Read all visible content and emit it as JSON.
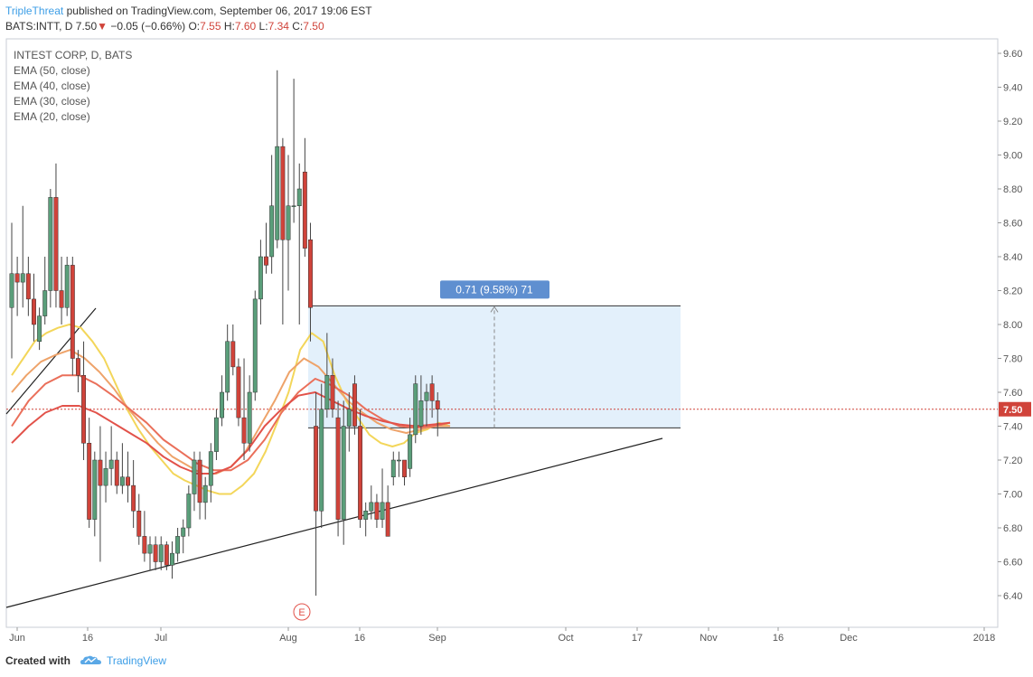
{
  "header": {
    "author": "TripleThreat",
    "published_text": "published on TradingView.com, September 06, 2017 19:06 EST",
    "symbol": "BATS:INTT, D",
    "last": "7.50",
    "arrow": "▼",
    "change": "−0.05 (−0.66%)",
    "ohlc_labels": [
      "O:",
      "H:",
      "L:",
      "C:"
    ],
    "ohlc_values": [
      "7.55",
      "7.60",
      "7.34",
      "7.50"
    ]
  },
  "legend": {
    "title": "INTEST CORP, D, BATS",
    "indicators": [
      "EMA (50, close)",
      "EMA (40, close)",
      "EMA (30, close)",
      "EMA (20, close)"
    ]
  },
  "footer": {
    "created_with": "Created with",
    "brand": "TradingView"
  },
  "measure_label": "0.71 (9.58%) 71",
  "earnings_marker": "E",
  "colors": {
    "up": "#5a9e7a",
    "down": "#d0433a",
    "ema20": "#f3d65a",
    "ema30": "#eea36a",
    "ema40": "#ea6f5a",
    "ema50": "#e2524a",
    "measure_fill": "#e3f0fb",
    "measure_label_bg": "#5f8fd0",
    "last_price_bg": "#d0433a"
  },
  "chart_data": {
    "type": "candlestick",
    "symbol": "BATS:INTT",
    "interval": "D",
    "price_axis": {
      "ticks": [
        "9.60",
        "9.40",
        "9.20",
        "9.00",
        "8.80",
        "8.60",
        "8.40",
        "8.20",
        "8.00",
        "7.80",
        "7.60",
        "7.40",
        "7.20",
        "7.00",
        "6.80",
        "6.60",
        "6.40"
      ],
      "range": [
        6.3,
        9.68
      ]
    },
    "time_axis": {
      "ticks": [
        "Jun",
        "16",
        "Jul",
        "Aug",
        "16",
        "Sep",
        "Oct",
        "17",
        "Nov",
        "16",
        "Dec",
        "2018"
      ]
    },
    "last_price": 7.5,
    "candles": [
      {
        "o": 8.1,
        "h": 8.6,
        "l": 7.8,
        "c": 8.3
      },
      {
        "o": 8.3,
        "h": 8.4,
        "l": 8.05,
        "c": 8.25
      },
      {
        "o": 8.25,
        "h": 8.7,
        "l": 8.1,
        "c": 8.3
      },
      {
        "o": 8.3,
        "h": 8.4,
        "l": 8.05,
        "c": 8.15
      },
      {
        "o": 8.15,
        "h": 8.3,
        "l": 7.9,
        "c": 8.0
      },
      {
        "o": 7.9,
        "h": 8.1,
        "l": 7.85,
        "c": 8.05
      },
      {
        "o": 8.05,
        "h": 8.4,
        "l": 8.0,
        "c": 8.2
      },
      {
        "o": 8.2,
        "h": 8.8,
        "l": 8.1,
        "c": 8.75
      },
      {
        "o": 8.75,
        "h": 8.95,
        "l": 8.1,
        "c": 8.2
      },
      {
        "o": 8.2,
        "h": 8.4,
        "l": 8.0,
        "c": 8.1
      },
      {
        "o": 8.1,
        "h": 8.4,
        "l": 8.05,
        "c": 8.35
      },
      {
        "o": 8.35,
        "h": 8.4,
        "l": 7.7,
        "c": 7.8
      },
      {
        "o": 7.8,
        "h": 7.85,
        "l": 7.6,
        "c": 7.7
      },
      {
        "o": 7.7,
        "h": 7.9,
        "l": 7.2,
        "c": 7.3
      },
      {
        "o": 7.3,
        "h": 7.45,
        "l": 6.8,
        "c": 6.85
      },
      {
        "o": 6.85,
        "h": 7.25,
        "l": 6.75,
        "c": 7.2
      },
      {
        "o": 7.2,
        "h": 7.4,
        "l": 6.6,
        "c": 7.05
      },
      {
        "o": 7.05,
        "h": 7.25,
        "l": 6.95,
        "c": 7.15
      },
      {
        "o": 7.15,
        "h": 7.4,
        "l": 7.05,
        "c": 7.2
      },
      {
        "o": 7.2,
        "h": 7.25,
        "l": 7.0,
        "c": 7.05
      },
      {
        "o": 7.05,
        "h": 7.3,
        "l": 7.0,
        "c": 7.1
      },
      {
        "o": 7.1,
        "h": 7.25,
        "l": 6.95,
        "c": 7.05
      },
      {
        "o": 7.05,
        "h": 7.2,
        "l": 6.8,
        "c": 6.9
      },
      {
        "o": 6.9,
        "h": 7.0,
        "l": 6.7,
        "c": 6.75
      },
      {
        "o": 6.75,
        "h": 6.9,
        "l": 6.6,
        "c": 6.65
      },
      {
        "o": 6.65,
        "h": 6.75,
        "l": 6.55,
        "c": 6.7
      },
      {
        "o": 6.7,
        "h": 6.75,
        "l": 6.55,
        "c": 6.6
      },
      {
        "o": 6.6,
        "h": 6.75,
        "l": 6.55,
        "c": 6.7
      },
      {
        "o": 6.7,
        "h": 6.72,
        "l": 6.55,
        "c": 6.58
      },
      {
        "o": 6.58,
        "h": 6.72,
        "l": 6.5,
        "c": 6.65
      },
      {
        "o": 6.65,
        "h": 6.8,
        "l": 6.6,
        "c": 6.75
      },
      {
        "o": 6.75,
        "h": 6.85,
        "l": 6.65,
        "c": 6.8
      },
      {
        "o": 6.8,
        "h": 7.05,
        "l": 6.75,
        "c": 7.0
      },
      {
        "o": 7.0,
        "h": 7.25,
        "l": 6.9,
        "c": 7.2
      },
      {
        "o": 7.2,
        "h": 7.25,
        "l": 6.85,
        "c": 6.95
      },
      {
        "o": 6.95,
        "h": 7.1,
        "l": 6.85,
        "c": 7.05
      },
      {
        "o": 7.05,
        "h": 7.3,
        "l": 6.95,
        "c": 7.25
      },
      {
        "o": 7.25,
        "h": 7.5,
        "l": 7.2,
        "c": 7.45
      },
      {
        "o": 7.45,
        "h": 7.7,
        "l": 7.4,
        "c": 7.6
      },
      {
        "o": 7.6,
        "h": 8.0,
        "l": 7.55,
        "c": 7.9
      },
      {
        "o": 7.9,
        "h": 8.0,
        "l": 7.7,
        "c": 7.75
      },
      {
        "o": 7.75,
        "h": 7.8,
        "l": 7.4,
        "c": 7.45
      },
      {
        "o": 7.45,
        "h": 7.8,
        "l": 7.2,
        "c": 7.3
      },
      {
        "o": 7.3,
        "h": 7.7,
        "l": 7.25,
        "c": 7.6
      },
      {
        "o": 7.6,
        "h": 8.2,
        "l": 7.55,
        "c": 8.15
      },
      {
        "o": 8.15,
        "h": 8.5,
        "l": 8.0,
        "c": 8.4
      },
      {
        "o": 8.4,
        "h": 8.6,
        "l": 8.3,
        "c": 8.35
      },
      {
        "o": 8.4,
        "h": 9.0,
        "l": 8.3,
        "c": 8.7
      },
      {
        "o": 8.5,
        "h": 9.5,
        "l": 8.45,
        "c": 9.05
      },
      {
        "o": 9.05,
        "h": 9.1,
        "l": 8.0,
        "c": 8.5
      },
      {
        "o": 8.5,
        "h": 9.0,
        "l": 8.2,
        "c": 8.7
      },
      {
        "o": 8.7,
        "h": 9.45,
        "l": 8.6,
        "c": 8.7
      },
      {
        "o": 8.7,
        "h": 8.95,
        "l": 8.0,
        "c": 8.8
      },
      {
        "o": 8.9,
        "h": 9.1,
        "l": 8.4,
        "c": 8.45
      },
      {
        "o": 8.5,
        "h": 8.6,
        "l": 7.9,
        "c": 8.1
      },
      {
        "o": 7.4,
        "h": 7.6,
        "l": 6.4,
        "c": 6.9
      },
      {
        "o": 6.9,
        "h": 7.65,
        "l": 6.8,
        "c": 7.5
      },
      {
        "o": 7.5,
        "h": 7.95,
        "l": 7.45,
        "c": 7.7
      },
      {
        "o": 7.7,
        "h": 7.8,
        "l": 7.45,
        "c": 7.5
      },
      {
        "o": 7.45,
        "h": 7.55,
        "l": 6.75,
        "c": 6.85
      },
      {
        "o": 6.85,
        "h": 7.55,
        "l": 6.7,
        "c": 7.4
      },
      {
        "o": 7.4,
        "h": 7.6,
        "l": 7.25,
        "c": 7.5
      },
      {
        "o": 7.65,
        "h": 7.7,
        "l": 7.35,
        "c": 7.4
      },
      {
        "o": 7.4,
        "h": 7.5,
        "l": 6.8,
        "c": 6.85
      },
      {
        "o": 6.85,
        "h": 6.95,
        "l": 6.75,
        "c": 6.9
      },
      {
        "o": 6.9,
        "h": 7.05,
        "l": 6.85,
        "c": 6.95
      },
      {
        "o": 6.95,
        "h": 7.0,
        "l": 6.8,
        "c": 6.85
      },
      {
        "o": 6.85,
        "h": 7.15,
        "l": 6.8,
        "c": 6.95
      },
      {
        "o": 6.95,
        "h": 7.05,
        "l": 6.75,
        "c": 6.75
      },
      {
        "o": 7.1,
        "h": 7.25,
        "l": 7.05,
        "c": 7.2
      },
      {
        "o": 7.2,
        "h": 7.25,
        "l": 7.1,
        "c": 7.2
      },
      {
        "o": 7.2,
        "h": 7.2,
        "l": 7.05,
        "c": 7.1
      },
      {
        "o": 7.15,
        "h": 7.45,
        "l": 7.1,
        "c": 7.35
      },
      {
        "o": 7.35,
        "h": 7.7,
        "l": 7.3,
        "c": 7.65
      },
      {
        "o": 7.4,
        "h": 7.7,
        "l": 7.35,
        "c": 7.55
      },
      {
        "o": 7.55,
        "h": 7.65,
        "l": 7.4,
        "c": 7.6
      },
      {
        "o": 7.65,
        "h": 7.7,
        "l": 7.45,
        "c": 7.55
      },
      {
        "o": 7.55,
        "h": 7.6,
        "l": 7.34,
        "c": 7.5
      }
    ],
    "ema": [
      {
        "name": "EMA (20, close)",
        "color_key": "ema20",
        "values": [
          7.7,
          7.8,
          7.9,
          7.95,
          7.98,
          8.0,
          7.98,
          7.9,
          7.8,
          7.65,
          7.5,
          7.38,
          7.28,
          7.2,
          7.12,
          7.08,
          7.05,
          7.02,
          7.0,
          7.0,
          7.05,
          7.12,
          7.25,
          7.42,
          7.6,
          7.85,
          7.95,
          7.9,
          7.7,
          7.55,
          7.45,
          7.35,
          7.3,
          7.28,
          7.3,
          7.36,
          7.38,
          7.42,
          7.4
        ]
      },
      {
        "name": "EMA (30, close)",
        "color_key": "ema30",
        "values": [
          7.6,
          7.7,
          7.78,
          7.82,
          7.85,
          7.8,
          7.72,
          7.62,
          7.5,
          7.4,
          7.3,
          7.22,
          7.17,
          7.12,
          7.12,
          7.16,
          7.25,
          7.4,
          7.55,
          7.72,
          7.8,
          7.75,
          7.65,
          7.55,
          7.48,
          7.42,
          7.38,
          7.36,
          7.38,
          7.4,
          7.4
        ]
      },
      {
        "name": "EMA (40, close)",
        "color_key": "ema40",
        "values": [
          7.4,
          7.55,
          7.65,
          7.7,
          7.7,
          7.65,
          7.58,
          7.5,
          7.42,
          7.32,
          7.25,
          7.18,
          7.14,
          7.14,
          7.2,
          7.32,
          7.48,
          7.6,
          7.68,
          7.64,
          7.58,
          7.5,
          7.44,
          7.4,
          7.39,
          7.4,
          7.42
        ]
      },
      {
        "name": "EMA (50, close)",
        "color_key": "ema50",
        "values": [
          7.3,
          7.4,
          7.48,
          7.52,
          7.52,
          7.48,
          7.42,
          7.36,
          7.3,
          7.22,
          7.16,
          7.12,
          7.12,
          7.16,
          7.26,
          7.4,
          7.5,
          7.58,
          7.6,
          7.55,
          7.5,
          7.46,
          7.43,
          7.41,
          7.4,
          7.41,
          7.42
        ]
      }
    ],
    "measure": {
      "from": 7.39,
      "to": 8.11,
      "label": "0.71 (9.58%) 71"
    }
  }
}
